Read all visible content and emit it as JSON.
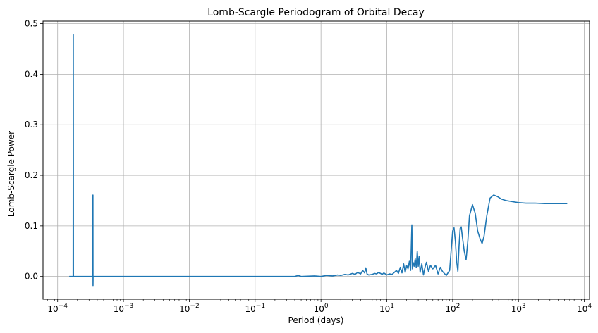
{
  "chart_data": {
    "type": "line",
    "title": "Lomb-Scargle Periodogram of Orbital Decay",
    "xlabel": "Period (days)",
    "ylabel": "Lomb-Scargle Power",
    "xscale": "log",
    "xlim": [
      6e-05,
      12000
    ],
    "ylim": [
      -0.045,
      0.505
    ],
    "grid": true,
    "line_color": "#1f77b4",
    "x_ticks": [
      {
        "value": 0.0001,
        "base": "10",
        "exp": "−4"
      },
      {
        "value": 0.001,
        "base": "10",
        "exp": "−3"
      },
      {
        "value": 0.01,
        "base": "10",
        "exp": "−2"
      },
      {
        "value": 0.1,
        "base": "10",
        "exp": "−1"
      },
      {
        "value": 1,
        "base": "10",
        "exp": "0"
      },
      {
        "value": 10,
        "base": "10",
        "exp": "1"
      },
      {
        "value": 100,
        "base": "10",
        "exp": "2"
      },
      {
        "value": 1000,
        "base": "10",
        "exp": "3"
      },
      {
        "value": 10000,
        "base": "10",
        "exp": "4"
      }
    ],
    "y_ticks": [
      {
        "value": 0.0,
        "label": "0.0"
      },
      {
        "value": 0.1,
        "label": "0.1"
      },
      {
        "value": 0.2,
        "label": "0.2"
      },
      {
        "value": 0.3,
        "label": "0.3"
      },
      {
        "value": 0.4,
        "label": "0.4"
      },
      {
        "value": 0.5,
        "label": "0.5"
      }
    ],
    "series": [
      {
        "x": [
          0.00015,
          0.000165,
          0.000172,
          0.000173,
          0.000174,
          0.000175,
          0.00018,
          0.00025,
          0.00034,
          0.000344,
          0.000345,
          0.000346,
          0.00035,
          0.0006,
          0.005,
          0.05,
          0.4,
          0.45,
          0.5,
          0.8,
          1.0,
          1.2,
          1.5,
          1.8,
          2.0,
          2.3,
          2.6,
          3.0,
          3.3,
          3.6,
          4.0,
          4.3,
          4.6,
          4.8,
          5.0,
          5.3,
          6.0,
          6.5,
          7.0,
          7.5,
          8.0,
          8.5,
          9.0,
          10.0,
          11.0,
          12.0,
          13.0,
          14.0,
          15.0,
          16.0,
          17.0,
          18.0,
          19.0,
          20.0,
          21.0,
          22.0,
          23.0,
          24.0,
          24.5,
          25.0,
          26.0,
          27.0,
          28.0,
          29.0,
          30.0,
          31.0,
          32.0,
          34.0,
          36.0,
          38.0,
          40.0,
          43.0,
          46.0,
          50.0,
          55.0,
          60.0,
          65.0,
          70.0,
          80.0,
          90.0,
          100.0,
          105.0,
          110.0,
          115.0,
          120.0,
          125.0,
          130.0,
          135.0,
          140.0,
          150.0,
          160.0,
          170.0,
          180.0,
          200.0,
          220.0,
          240.0,
          260.0,
          280.0,
          300.0,
          330.0,
          370.0,
          420.0,
          480.0,
          550.0,
          650.0,
          800.0,
          1000.0,
          1300.0,
          1800.0,
          2500.0,
          3500.0,
          5500.0
        ],
        "y": [
          0.0,
          0.0,
          0.0,
          0.478,
          0.0,
          0.0,
          0.0,
          0.0,
          0.0,
          0.161,
          -0.018,
          0.0,
          0.0,
          0.0,
          0.0,
          0.0,
          0.0,
          0.002,
          0.0,
          0.001,
          0.0,
          0.002,
          0.001,
          0.003,
          0.002,
          0.004,
          0.003,
          0.006,
          0.004,
          0.008,
          0.005,
          0.012,
          0.007,
          0.017,
          0.005,
          0.003,
          0.004,
          0.006,
          0.005,
          0.008,
          0.006,
          0.004,
          0.007,
          0.003,
          0.005,
          0.004,
          0.008,
          0.012,
          0.006,
          0.018,
          0.007,
          0.025,
          0.008,
          0.022,
          0.015,
          0.03,
          0.012,
          0.102,
          0.015,
          0.028,
          0.02,
          0.035,
          0.018,
          0.05,
          0.02,
          0.04,
          0.008,
          0.025,
          0.003,
          0.018,
          0.028,
          0.01,
          0.022,
          0.015,
          0.022,
          0.005,
          0.018,
          0.01,
          0.002,
          0.012,
          0.09,
          0.096,
          0.07,
          0.03,
          0.01,
          0.06,
          0.095,
          0.098,
          0.08,
          0.05,
          0.033,
          0.07,
          0.12,
          0.142,
          0.125,
          0.09,
          0.075,
          0.065,
          0.08,
          0.12,
          0.155,
          0.161,
          0.158,
          0.153,
          0.15,
          0.148,
          0.146,
          0.145,
          0.145,
          0.144,
          0.144,
          0.144
        ]
      }
    ]
  }
}
